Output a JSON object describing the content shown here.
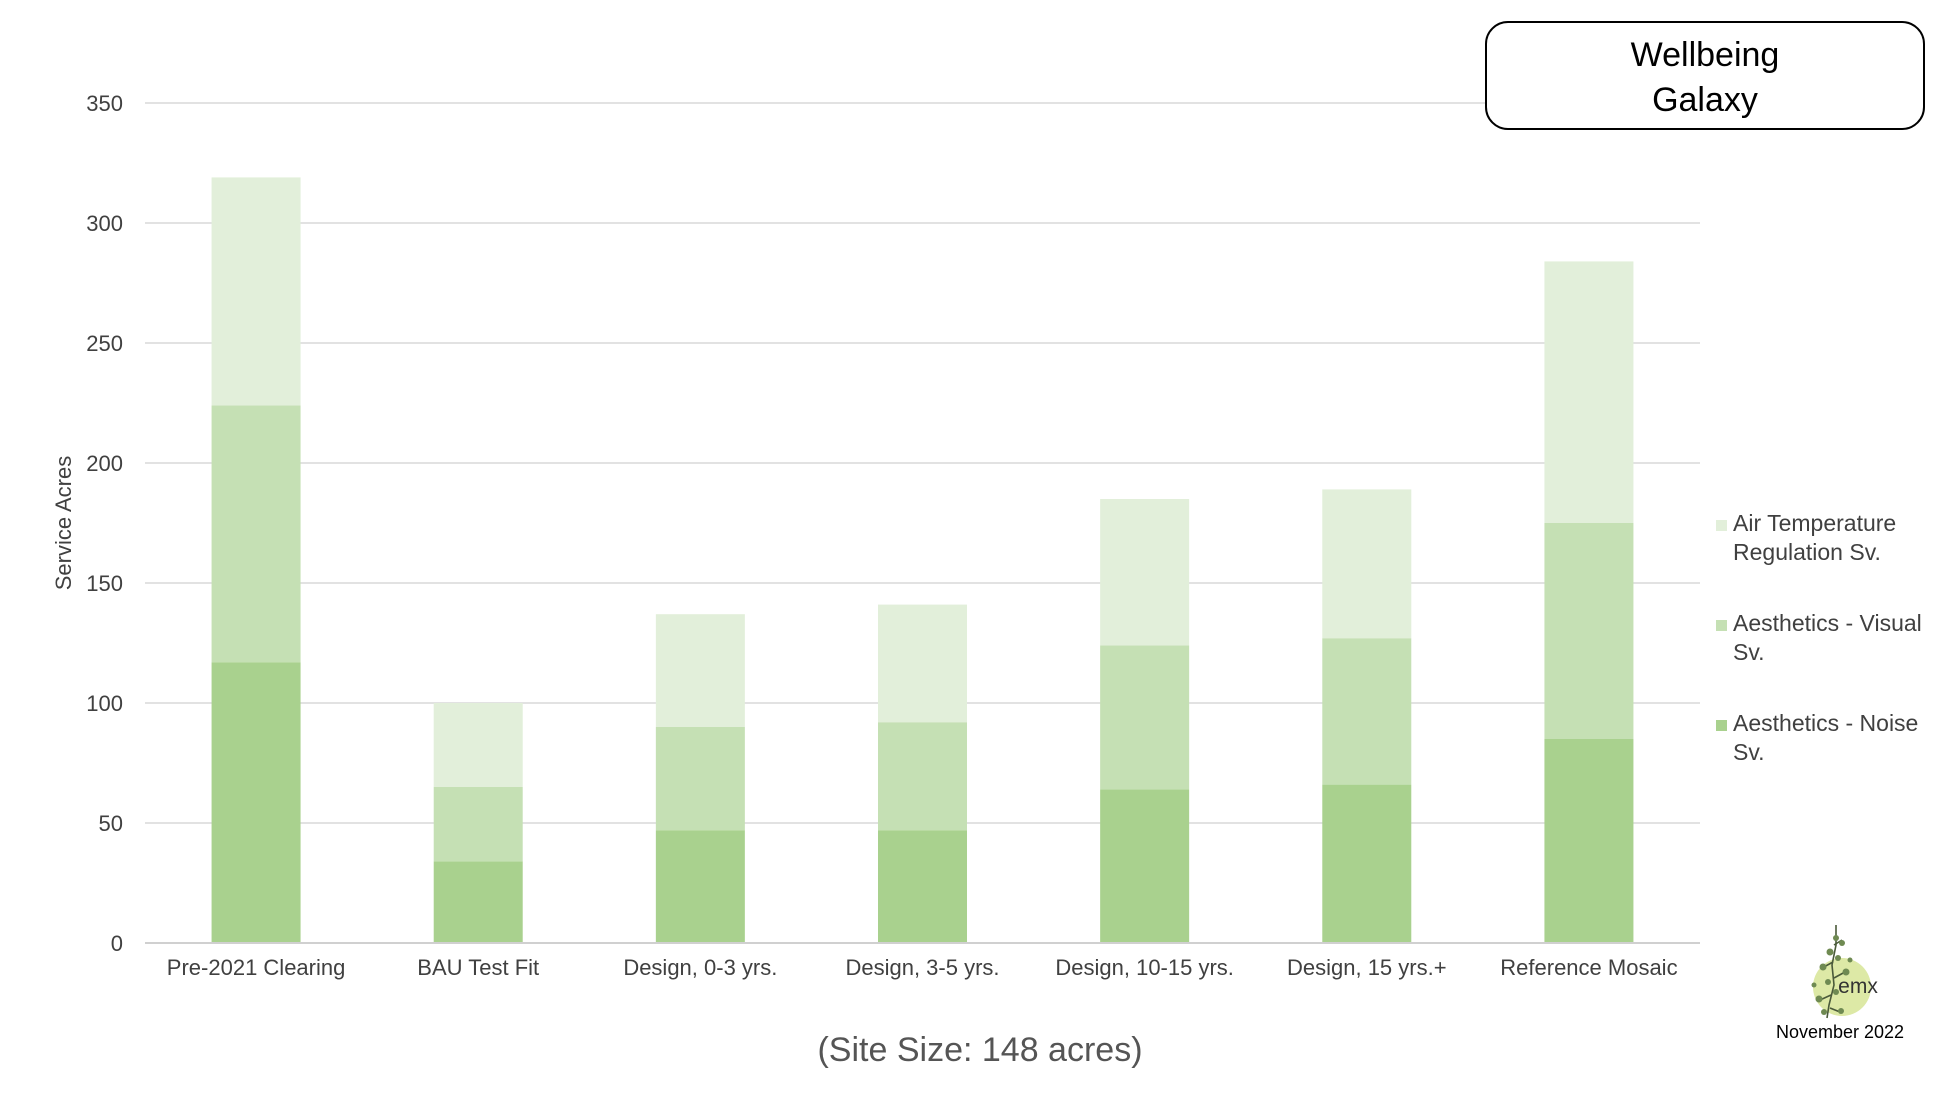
{
  "chart_data": {
    "type": "bar",
    "stacked": true,
    "title_lines": [
      "Wellbeing",
      "Galaxy"
    ],
    "ylabel": "Service Acres",
    "xlabel": "",
    "ylim": [
      0,
      350
    ],
    "yticks": [
      0,
      50,
      100,
      150,
      200,
      250,
      300,
      350
    ],
    "grid": true,
    "legend_position": "right",
    "categories": [
      "Pre-2021 Clearing",
      "BAU Test Fit",
      "Design, 0-3 yrs.",
      "Design, 3-5 yrs.",
      "Design, 10-15 yrs.",
      "Design, 15 yrs.+",
      "Reference Mosaic"
    ],
    "series": [
      {
        "name": "Aesthetics - Noise Sv.",
        "name_lines": [
          "Aesthetics - Noise",
          "Sv."
        ],
        "color": "#a9d18e",
        "values": [
          117,
          34,
          47,
          47,
          64,
          66,
          85
        ]
      },
      {
        "name": "Aesthetics - Visual Sv.",
        "name_lines": [
          "Aesthetics - Visual",
          "Sv."
        ],
        "color": "#c5e0b4",
        "values": [
          107,
          31,
          43,
          45,
          60,
          61,
          90
        ]
      },
      {
        "name": "Air Temperature Regulation Sv.",
        "name_lines": [
          "Air Temperature",
          "Regulation Sv."
        ],
        "color": "#e2efda",
        "values": [
          95,
          35,
          47,
          49,
          61,
          62,
          109
        ]
      }
    ]
  },
  "caption": "(Site Size: 148 acres)",
  "logo": {
    "text": "emx",
    "date": "November 2022",
    "accent_color": "#dde9a6"
  }
}
